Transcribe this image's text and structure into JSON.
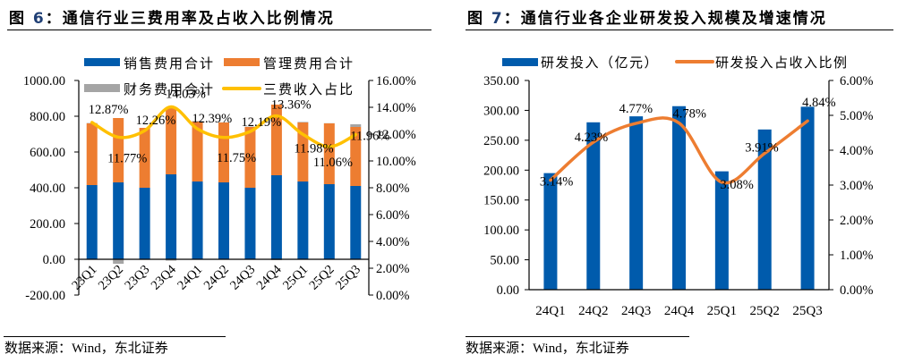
{
  "left": {
    "title_prefix": "图 ",
    "title_num": "6",
    "title_text": "：通信行业三费用率及占收入比例情况",
    "source": "数据来源：Wind，东北证券"
  },
  "right": {
    "title_prefix": "图 ",
    "title_num": "7",
    "title_text": "：通信行业各企业研发投入规模及增速情况",
    "source": "数据来源：Wind，东北证券"
  },
  "colors": {
    "blue": "#005bac",
    "orange": "#ed7d31",
    "gray": "#a5a5a5",
    "yellow": "#ffc000",
    "line_orange": "#ed7d31"
  },
  "chart_data": [
    {
      "type": "bar",
      "stacked": true,
      "categories": [
        "23Q1",
        "23Q2",
        "23Q3",
        "23Q4",
        "24Q1",
        "24Q2",
        "24Q3",
        "24Q4",
        "25Q1",
        "25Q2",
        "25Q3"
      ],
      "series": [
        {
          "name": "销售费用合计",
          "axis": "left",
          "values": [
            415,
            430,
            400,
            475,
            435,
            430,
            400,
            470,
            435,
            420,
            410
          ]
        },
        {
          "name": "管理费用合计",
          "axis": "left",
          "values": [
            345,
            360,
            335,
            370,
            335,
            335,
            340,
            395,
            330,
            340,
            330
          ]
        },
        {
          "name": "财务费用合计",
          "axis": "left",
          "values": [
            2,
            -25,
            -3,
            0,
            3,
            1,
            2,
            -5,
            3,
            1,
            15
          ]
        },
        {
          "name": "三费收入占比",
          "axis": "right",
          "type": "line",
          "values": [
            12.87,
            11.77,
            12.26,
            14.03,
            12.39,
            11.75,
            12.19,
            13.36,
            11.98,
            11.06,
            11.96
          ],
          "labels": [
            "12.87%",
            "11.77%",
            "12.26%",
            "14.03%",
            "12.39%",
            "11.75%",
            "12.19%",
            "13.36%",
            "11.98%",
            "11.06%",
            "11.96%"
          ]
        }
      ],
      "ylim": [
        -200,
        1000
      ],
      "yticks": [
        "-200.00",
        "0.00",
        "200.00",
        "400.00",
        "600.00",
        "800.00",
        "1000.00"
      ],
      "y2lim": [
        0,
        16
      ],
      "y2ticks": [
        "0.00%",
        "2.00%",
        "4.00%",
        "6.00%",
        "8.00%",
        "10.00%",
        "12.00%",
        "14.00%",
        "16.00%"
      ],
      "legend": "top",
      "grid": false
    },
    {
      "type": "bar",
      "categories": [
        "24Q1",
        "24Q2",
        "24Q3",
        "24Q4",
        "25Q1",
        "25Q2",
        "25Q3"
      ],
      "series": [
        {
          "name": "研发投入（亿元）",
          "axis": "left",
          "values": [
            195,
            280,
            290,
            307,
            198,
            268,
            306
          ]
        },
        {
          "name": "研发投入占收入比例",
          "axis": "right",
          "type": "line",
          "values": [
            3.14,
            4.23,
            4.77,
            4.78,
            3.08,
            3.91,
            4.84
          ],
          "labels": [
            "3.14%",
            "4.23%",
            "4.77%",
            "4.78%",
            "3.08%",
            "3.91%",
            "4.84%"
          ]
        }
      ],
      "ylim": [
        0,
        350
      ],
      "yticks": [
        "0.00",
        "50.00",
        "100.00",
        "150.00",
        "200.00",
        "250.00",
        "300.00",
        "350.00"
      ],
      "y2lim": [
        0,
        6
      ],
      "y2ticks": [
        "0.00%",
        "1.00%",
        "2.00%",
        "3.00%",
        "4.00%",
        "5.00%",
        "6.00%"
      ],
      "legend": "top",
      "grid": false
    }
  ]
}
